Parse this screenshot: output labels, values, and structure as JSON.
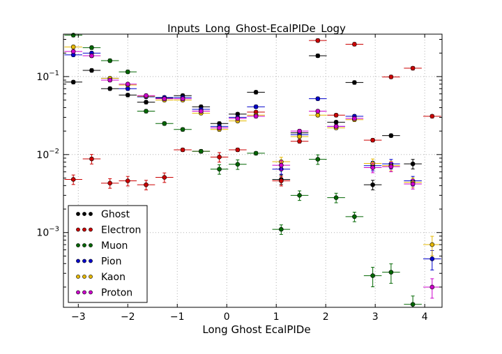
{
  "chart_data": {
    "type": "scatter",
    "title": "Inputs_Long_Ghost-EcalPIDe_Logy",
    "xlabel": "Long Ghost EcalPIDe",
    "ylabel": "",
    "xlim": [
      -3.3,
      4.35
    ],
    "ylim": [
      0.00011,
      0.35
    ],
    "yscale": "log",
    "grid": true,
    "legend_position": "lower-left",
    "x_ticks": [
      -3,
      -2,
      -1,
      0,
      1,
      2,
      3,
      4
    ],
    "x_tick_labels": [
      "−3",
      "−2",
      "−1",
      "0",
      "1",
      "2",
      "3",
      "4"
    ],
    "y_ticks": [
      0.001,
      0.01,
      0.1
    ],
    "y_tick_labels": [
      {
        "base": "10",
        "exp": "−3"
      },
      {
        "base": "10",
        "exp": "−2"
      },
      {
        "base": "10",
        "exp": "−1"
      }
    ],
    "x_halfwidth": 0.18,
    "series": [
      {
        "name": "Ghost",
        "color": "#000000",
        "x": [
          -3.1,
          -2.73,
          -2.36,
          -2.0,
          -1.63,
          -1.26,
          -0.89,
          -0.52,
          -0.15,
          0.22,
          0.59,
          1.1,
          1.47,
          1.84,
          2.21,
          2.58,
          2.95,
          3.32,
          3.76
        ],
        "y": [
          0.085,
          0.12,
          0.07,
          0.058,
          0.047,
          0.053,
          0.057,
          0.041,
          0.025,
          0.033,
          0.063,
          0.0048,
          0.019,
          0.185,
          0.026,
          0.084,
          0.0041,
          0.0175,
          0.0076
        ]
      },
      {
        "name": "Electron",
        "color": "#cc0000",
        "x": [
          -3.1,
          -2.73,
          -2.36,
          -2.0,
          -1.63,
          -1.26,
          -0.89,
          -0.52,
          -0.15,
          0.22,
          0.59,
          1.1,
          1.47,
          1.84,
          2.21,
          2.58,
          2.95,
          3.32,
          3.76,
          4.15
        ],
        "y": [
          0.0048,
          0.0088,
          0.0043,
          0.0046,
          0.0041,
          0.0051,
          0.0115,
          0.011,
          0.0093,
          0.0115,
          0.035,
          0.0046,
          0.0148,
          0.29,
          0.032,
          0.26,
          0.0153,
          0.099,
          0.128,
          0.031
        ]
      },
      {
        "name": "Muon",
        "color": "#006600",
        "x": [
          -3.1,
          -2.73,
          -2.36,
          -2.0,
          -1.63,
          -1.26,
          -0.89,
          -0.52,
          -0.15,
          0.22,
          0.59,
          1.1,
          1.47,
          1.84,
          2.21,
          2.58,
          2.95,
          3.32,
          3.76
        ],
        "y": [
          0.34,
          0.235,
          0.16,
          0.115,
          0.036,
          0.025,
          0.021,
          0.011,
          0.0065,
          0.0075,
          0.0104,
          0.0011,
          0.003,
          0.0087,
          0.0028,
          0.0016,
          0.00028,
          0.00031,
          0.00012
        ]
      },
      {
        "name": "Pion",
        "color": "#0000cc",
        "x": [
          -3.1,
          -2.73,
          -2.36,
          -2.0,
          -1.63,
          -1.26,
          -0.89,
          -0.52,
          -0.15,
          0.22,
          0.59,
          1.1,
          1.47,
          1.84,
          2.21,
          2.58,
          2.95,
          3.32,
          3.76,
          4.15
        ],
        "y": [
          0.19,
          0.2,
          0.095,
          0.07,
          0.055,
          0.054,
          0.054,
          0.038,
          0.023,
          0.03,
          0.041,
          0.0065,
          0.018,
          0.052,
          0.023,
          0.031,
          0.0072,
          0.0076,
          0.0046,
          0.00046
        ]
      },
      {
        "name": "Kaon",
        "color": "#e6b800",
        "x": [
          -3.1,
          -2.73,
          -2.36,
          -2.0,
          -1.63,
          -1.26,
          -0.89,
          -0.52,
          -0.15,
          0.22,
          0.59,
          1.1,
          1.47,
          1.84,
          2.21,
          2.58,
          2.95,
          3.32,
          3.76,
          4.15
        ],
        "y": [
          0.24,
          0.185,
          0.095,
          0.078,
          0.056,
          0.05,
          0.05,
          0.034,
          0.021,
          0.027,
          0.032,
          0.0081,
          0.017,
          0.032,
          0.022,
          0.028,
          0.0077,
          0.0072,
          0.0044,
          0.0007
        ]
      },
      {
        "name": "Proton",
        "color": "#cc00cc",
        "x": [
          -3.1,
          -2.73,
          -2.36,
          -2.0,
          -1.63,
          -1.26,
          -0.89,
          -0.52,
          -0.15,
          0.22,
          0.59,
          1.1,
          1.47,
          1.84,
          2.21,
          2.58,
          2.95,
          3.32,
          3.76,
          4.15
        ],
        "y": [
          0.21,
          0.185,
          0.09,
          0.08,
          0.057,
          0.052,
          0.052,
          0.036,
          0.022,
          0.029,
          0.031,
          0.0073,
          0.02,
          0.036,
          0.023,
          0.029,
          0.0068,
          0.007,
          0.0042,
          0.0002
        ]
      }
    ]
  }
}
